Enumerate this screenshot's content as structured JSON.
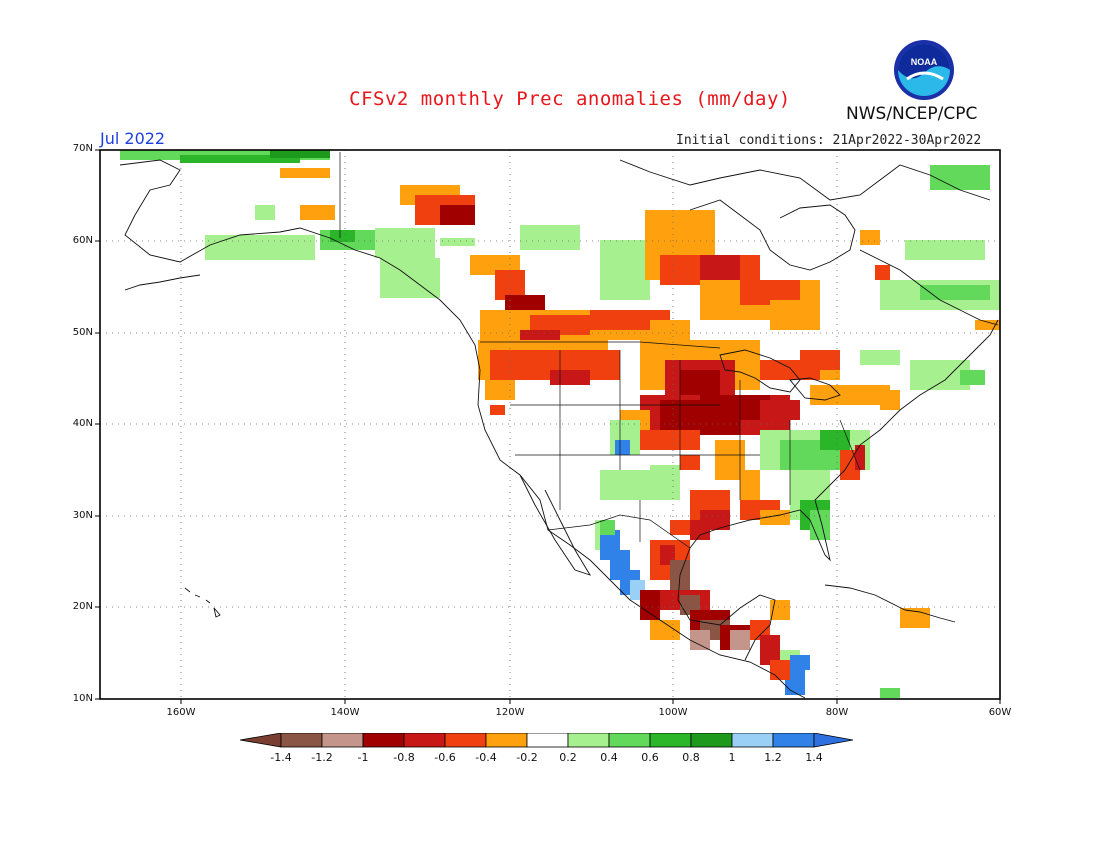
{
  "header": {
    "title": "CFSv2 monthly Prec anomalies (mm/day)",
    "agency": "NWS/NCEP/CPC",
    "logo_text": "NOAA",
    "month": "Jul 2022",
    "initial_conditions": "Initial conditions: 21Apr2022-30Apr2022"
  },
  "map": {
    "projection": "lat-lon",
    "lon_range": [
      -172,
      -60
    ],
    "lat_range": [
      10,
      70
    ],
    "lat_ticks": [
      "70N",
      "60N",
      "50N",
      "40N",
      "30N",
      "20N",
      "10N"
    ],
    "lon_ticks": [
      "160W",
      "140W",
      "120W",
      "100W",
      "80W",
      "60W"
    ],
    "grid": "dotted",
    "anomaly_regions": [
      {
        "name": "Northern Plains / Upper Midwest",
        "category": "-0.8 to -0.6",
        "color": "#c00000"
      },
      {
        "name": "Southern Canada",
        "category": "-0.4 to -0.2",
        "color": "#ffa10e"
      },
      {
        "name": "Southern Mexico",
        "category": "< -1.0",
        "color": "#7f4a3e"
      },
      {
        "name": "Northwest Mexico coast",
        "category": "> 1.0",
        "color": "#3182e8"
      },
      {
        "name": "Southeast US",
        "category": "0.4 to 0.8",
        "color": "#35c43d"
      },
      {
        "name": "Alaska north slope",
        "category": "0.4 to 0.8",
        "color": "#1aab25"
      }
    ]
  },
  "colorbar": {
    "ticks": [
      "-1.4",
      "-1.2",
      "-1",
      "-0.8",
      "-0.6",
      "-0.4",
      "-0.2",
      "0.2",
      "0.4",
      "0.6",
      "0.8",
      "1",
      "1.2",
      "1.4"
    ],
    "colors": [
      "#8a5544",
      "#c4968b",
      "#a00000",
      "#c81717",
      "#f04010",
      "#ffa10e",
      "#ffffff",
      "#a6f08f",
      "#62d95a",
      "#2bb528",
      "#1d9a1c",
      "#9ad0f5",
      "#3182e8"
    ],
    "end_colors": [
      "#7a3e30",
      "#2f70e0"
    ]
  }
}
